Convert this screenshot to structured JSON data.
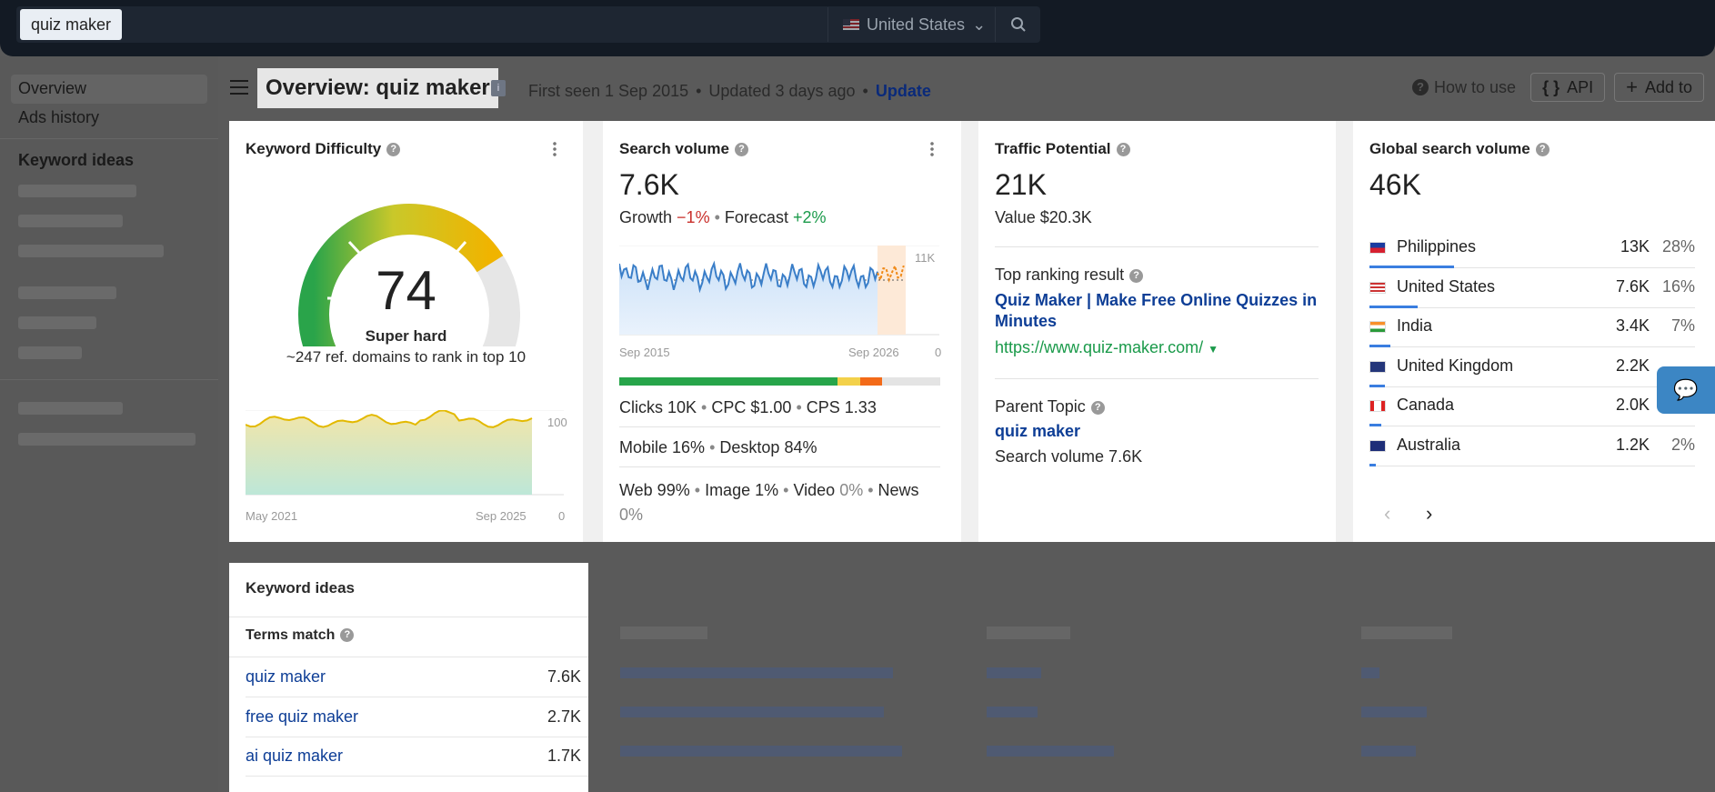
{
  "search": {
    "query": "quiz maker",
    "country": "United States"
  },
  "sidebar": {
    "overview": "Overview",
    "ads_history": "Ads history",
    "keyword_ideas": "Keyword ideas"
  },
  "header": {
    "title": "Overview: quiz maker",
    "info_badge": "i",
    "first_seen": "First seen 1 Sep 2015",
    "updated": "Updated 3 days ago",
    "update_link": "Update",
    "how_to_use": "How to use",
    "api": "API",
    "add_to": "Add to"
  },
  "kd": {
    "title": "Keyword Difficulty",
    "score": "74",
    "label": "Super hard",
    "subtitle": "~247 ref. domains to rank in top 10",
    "chart_y_max": "100",
    "chart_y_min": "0",
    "chart_x_start": "May 2021",
    "chart_x_end": "Sep 2025"
  },
  "sv": {
    "title": "Search volume",
    "value": "7.6K",
    "growth_label": "Growth",
    "growth": "−1%",
    "forecast_label": "Forecast",
    "forecast": "+2%",
    "chart_y_max": "11K",
    "chart_y_min": "0",
    "chart_x_start": "Sep 2015",
    "chart_x_end": "Sep 2026",
    "clicks": "Clicks 10K",
    "cpc": "CPC $1.00",
    "cps": "CPS 1.33",
    "mobile": "Mobile 16%",
    "desktop": "Desktop 84%",
    "web": "Web 99%",
    "image": "Image 1%",
    "video_label": "Video",
    "video": "0%",
    "news_label": "News",
    "news": "0%",
    "click_split": [
      0.68,
      0.07,
      0.07,
      0.18
    ]
  },
  "tp": {
    "title": "Traffic Potential",
    "value": "21K",
    "value_text": "Value $20.3K",
    "top_label": "Top ranking result",
    "top_title": "Quiz Maker | Make Free Online Quizzes in Minutes",
    "top_url": "https://www.quiz-maker.com/",
    "parent_label": "Parent Topic",
    "parent_link": "quiz maker",
    "parent_sv": "Search volume 7.6K"
  },
  "gsv": {
    "title": "Global search volume",
    "value": "46K",
    "countries": [
      {
        "name": "Philippines",
        "value": "13K",
        "pct": "28%",
        "share": 0.28
      },
      {
        "name": "United States",
        "value": "7.6K",
        "pct": "16%",
        "share": 0.16
      },
      {
        "name": "India",
        "value": "3.4K",
        "pct": "7%",
        "share": 0.07
      },
      {
        "name": "United Kingdom",
        "value": "2.2K",
        "pct": "",
        "share": 0.05
      },
      {
        "name": "Canada",
        "value": "2.0K",
        "pct": "4%",
        "share": 0.04
      },
      {
        "name": "Australia",
        "value": "1.2K",
        "pct": "2%",
        "share": 0.02
      }
    ]
  },
  "ideas": {
    "title": "Keyword ideas",
    "terms_match": "Terms match",
    "rows": [
      {
        "kw": "quiz maker",
        "v": "7.6K"
      },
      {
        "kw": "free quiz maker",
        "v": "2.7K"
      },
      {
        "kw": "ai quiz maker",
        "v": "1.7K"
      }
    ]
  },
  "colors": {
    "accent": "#0e3e96",
    "green": "#1a9a4a",
    "red": "#c9302c",
    "kd_gauge": "#f0b400"
  }
}
